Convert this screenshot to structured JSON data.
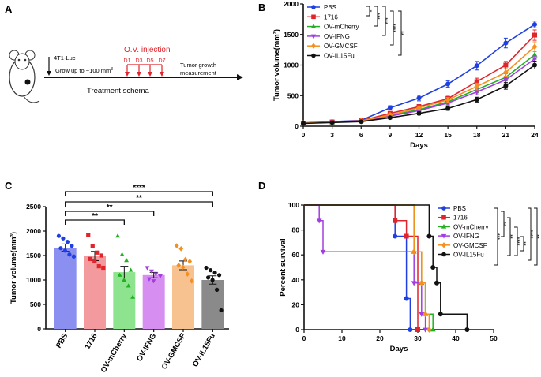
{
  "panels": {
    "a": "A",
    "b": "B",
    "c": "C",
    "d": "D"
  },
  "schema": {
    "cell_line": "4T1-Luc",
    "growth": "Grow up to ~100 mm",
    "growth_sup": "3",
    "injection_title": "O.V. injection",
    "days": [
      "D1",
      "D3",
      "D5",
      "D7"
    ],
    "measure_line1": "Tumor growth",
    "measure_line2": "measurement",
    "caption": "Treatment schema",
    "accent": "#e0242b"
  },
  "chart_data": [
    {
      "type": "line",
      "id": "B",
      "xlabel": "Days",
      "ylabel": "Tumor volume(mm³)",
      "xlim": [
        0,
        24
      ],
      "ylim": [
        0,
        2000
      ],
      "xticks": [
        0,
        3,
        6,
        9,
        12,
        15,
        18,
        21,
        24
      ],
      "yticks": [
        0,
        500,
        1000,
        1500,
        2000
      ],
      "x": [
        0,
        3,
        6,
        9,
        12,
        15,
        18,
        21,
        24
      ],
      "series": [
        {
          "name": "PBS",
          "color": "#1f3fe0",
          "marker": "circle",
          "values": [
            55,
            75,
            95,
            300,
            460,
            690,
            990,
            1360,
            1665
          ],
          "errors": [
            15,
            15,
            20,
            35,
            45,
            50,
            70,
            80,
            55
          ]
        },
        {
          "name": "1716",
          "color": "#e0242b",
          "marker": "square",
          "values": [
            50,
            70,
            90,
            210,
            320,
            450,
            730,
            1000,
            1490
          ],
          "errors": [
            15,
            15,
            20,
            30,
            35,
            40,
            55,
            60,
            85
          ]
        },
        {
          "name": "OV-mCherry",
          "color": "#22b022",
          "marker": "triangle-up",
          "values": [
            50,
            65,
            85,
            175,
            270,
            400,
            600,
            800,
            1170
          ],
          "errors": [
            15,
            15,
            15,
            25,
            30,
            40,
            55,
            60,
            75
          ]
        },
        {
          "name": "OV-IFNG",
          "color": "#a23ee0",
          "marker": "triangle-down",
          "values": [
            50,
            65,
            80,
            165,
            255,
            380,
            560,
            760,
            1100
          ],
          "errors": [
            15,
            15,
            15,
            25,
            30,
            35,
            45,
            50,
            45
          ]
        },
        {
          "name": "OV-GMCSF",
          "color": "#f5901e",
          "marker": "diamond",
          "values": [
            50,
            65,
            85,
            185,
            300,
            430,
            650,
            880,
            1300
          ],
          "errors": [
            15,
            15,
            15,
            25,
            30,
            40,
            55,
            60,
            80
          ]
        },
        {
          "name": "OV-IL15Fu",
          "color": "#111111",
          "marker": "circle",
          "values": [
            45,
            60,
            75,
            140,
            210,
            290,
            435,
            660,
            1000
          ],
          "errors": [
            15,
            15,
            15,
            20,
            25,
            30,
            40,
            55,
            65
          ]
        }
      ],
      "significance": [
        "*",
        "***",
        "***",
        "****",
        "**"
      ]
    },
    {
      "type": "bar",
      "id": "C",
      "ylabel": "Tumor volume(mm³)",
      "ylim": [
        0,
        2500
      ],
      "yticks": [
        0,
        500,
        1000,
        1500,
        2000,
        2500
      ],
      "categories": [
        "PBS",
        "1716",
        "OV-mCherry",
        "OV-IFNG",
        "OV-GMCSF",
        "OV-IL15Fu"
      ],
      "values": [
        1660,
        1490,
        1160,
        1100,
        1300,
        1000
      ],
      "errors": [
        75,
        95,
        120,
        55,
        90,
        85
      ],
      "colors": [
        "#8a8ff0",
        "#f29a9d",
        "#8ee38e",
        "#d68ef0",
        "#f8c290",
        "#8a8a8a"
      ],
      "point_colors": [
        "#1f3fe0",
        "#e0242b",
        "#22b022",
        "#a23ee0",
        "#f5901e",
        "#111111"
      ],
      "points": [
        [
          1900,
          1850,
          1780,
          1700,
          1650,
          1600,
          1520,
          1480
        ],
        [
          1920,
          1700,
          1560,
          1500,
          1430,
          1380,
          1280,
          1250
        ],
        [
          1900,
          1520,
          1400,
          1200,
          1100,
          1000,
          880,
          650
        ],
        [
          1250,
          1180,
          1120,
          1080,
          1020,
          980
        ],
        [
          1700,
          1640,
          1420,
          1380,
          1300,
          1260,
          1120,
          980
        ],
        [
          1250,
          1200,
          1150,
          1100,
          1050,
          1000,
          800,
          380
        ]
      ],
      "comparisons": [
        {
          "from": "PBS",
          "to": "OV-IL15Fu",
          "label": "****"
        },
        {
          "from": "PBS",
          "to": "OV-IL15Fu",
          "label": "**"
        },
        {
          "from": "PBS",
          "to": "OV-IFNG",
          "label": "**"
        },
        {
          "from": "PBS",
          "to": "OV-mCherry",
          "label": "**"
        }
      ]
    },
    {
      "type": "line",
      "subtype": "survival",
      "id": "D",
      "xlabel": "Days",
      "ylabel": "Percent survival",
      "xlim": [
        0,
        50
      ],
      "ylim": [
        0,
        100
      ],
      "xticks": [
        0,
        10,
        20,
        30,
        40,
        50
      ],
      "yticks": [
        0,
        20,
        40,
        60,
        80,
        100
      ],
      "series": [
        {
          "name": "PBS",
          "color": "#1f3fe0",
          "marker": "circle",
          "steps": [
            [
              0,
              100
            ],
            [
              24,
              75
            ],
            [
              27,
              25
            ],
            [
              28,
              0
            ]
          ]
        },
        {
          "name": "1716",
          "color": "#e0242b",
          "marker": "square",
          "steps": [
            [
              0,
              100
            ],
            [
              24,
              87.5
            ],
            [
              27,
              75
            ],
            [
              30,
              0
            ]
          ]
        },
        {
          "name": "OV-mCherry",
          "color": "#22b022",
          "marker": "triangle-up",
          "steps": [
            [
              0,
              100
            ],
            [
              29,
              62.5
            ],
            [
              31,
              37.5
            ],
            [
              32,
              12.5
            ],
            [
              34,
              0
            ]
          ]
        },
        {
          "name": "OV-IFNG",
          "color": "#a23ee0",
          "marker": "triangle-down",
          "steps": [
            [
              0,
              100
            ],
            [
              4,
              87.5
            ],
            [
              5,
              62.5
            ],
            [
              29,
              37.5
            ],
            [
              31,
              12.5
            ],
            [
              32,
              0
            ]
          ]
        },
        {
          "name": "OV-GMCSF",
          "color": "#f5901e",
          "marker": "diamond",
          "steps": [
            [
              0,
              100
            ],
            [
              29,
              62.5
            ],
            [
              31,
              37.5
            ],
            [
              32,
              12.5
            ],
            [
              33,
              0
            ]
          ]
        },
        {
          "name": "OV-IL15Fu",
          "color": "#111111",
          "marker": "circle",
          "steps": [
            [
              0,
              100
            ],
            [
              33,
              75
            ],
            [
              34,
              50
            ],
            [
              35,
              37.5
            ],
            [
              36,
              12.5
            ],
            [
              43,
              0
            ]
          ]
        }
      ],
      "significance": [
        "***",
        "**",
        "**",
        "****",
        "**",
        "****",
        "**"
      ]
    }
  ]
}
